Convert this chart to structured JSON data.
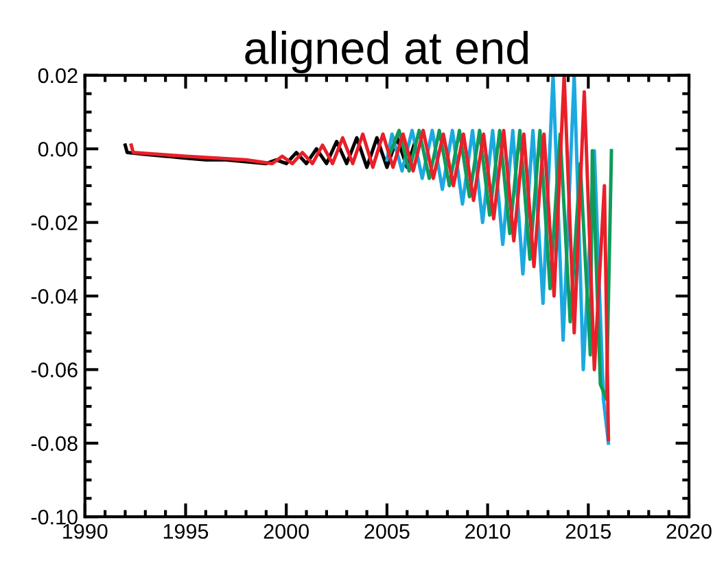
{
  "chart_data": {
    "type": "line",
    "title": "aligned at end",
    "xlim": [
      1990,
      2020
    ],
    "xticks": [
      1990,
      1995,
      2000,
      2005,
      2010,
      2015,
      2020
    ],
    "ylim": [
      -0.1,
      0.02
    ],
    "yticks": [
      {
        "value": 0.02,
        "label": "0.02"
      },
      {
        "value": 0.0,
        "label": "0.00"
      },
      {
        "value": -0.02,
        "label": "-0.02"
      },
      {
        "value": -0.04,
        "label": "-0.04"
      },
      {
        "value": -0.06,
        "label": "-0.06"
      },
      {
        "value": -0.08,
        "label": "-0.08"
      },
      {
        "value": -0.1,
        "label": "-0.10"
      }
    ],
    "marker": "none",
    "line_style": "solid",
    "series": [
      {
        "color": "#000000",
        "x": [
          1992.0,
          1992.1,
          1993,
          1994,
          1995,
          1996,
          1997,
          1998,
          1999,
          1999.5,
          2000,
          2000.5,
          2001,
          2001.5,
          2002,
          2002.5,
          2003,
          2003.5,
          2004,
          2004.5,
          2005,
          2005.5,
          2006,
          2006.4
        ],
        "values": [
          0.001,
          -0.001,
          -0.0015,
          -0.002,
          -0.0025,
          -0.003,
          -0.003,
          -0.0035,
          -0.004,
          -0.003,
          -0.004,
          -0.001,
          -0.004,
          0.0,
          -0.004,
          0.002,
          -0.004,
          0.003,
          -0.005,
          0.003,
          -0.005,
          0.003,
          -0.005,
          0.002
        ]
      },
      {
        "color": "#1ca9e1",
        "x": [
          2005.0,
          2005.25,
          2005.75,
          2006.25,
          2006.75,
          2007.25,
          2007.75,
          2008.25,
          2008.75,
          2009.25,
          2009.75,
          2010.25,
          2010.75,
          2011.25,
          2011.75,
          2012.25,
          2012.75,
          2013.25,
          2013.75,
          2014.3,
          2014.75,
          2015.3,
          2015.75,
          2016.0
        ],
        "values": [
          -0.003,
          0.004,
          -0.006,
          0.005,
          -0.008,
          0.005,
          -0.011,
          0.005,
          -0.015,
          0.005,
          -0.02,
          0.005,
          -0.026,
          0.005,
          -0.034,
          0.005,
          -0.042,
          0.02,
          -0.052,
          0.02,
          -0.06,
          -0.0005,
          -0.068,
          -0.08
        ]
      },
      {
        "color": "#0f9b5a",
        "x": [
          2005.1,
          2005.6,
          2006.1,
          2006.6,
          2007.1,
          2007.6,
          2008.1,
          2008.6,
          2009.1,
          2009.6,
          2010.1,
          2010.6,
          2011.1,
          2011.6,
          2012.1,
          2012.6,
          2013.1,
          2013.6,
          2014.1,
          2014.6,
          2015.1,
          2015.2,
          2015.6,
          2015.9,
          2016.15
        ],
        "values": [
          -0.002,
          0.005,
          -0.006,
          0.005,
          -0.008,
          0.005,
          -0.01,
          0.005,
          -0.013,
          0.005,
          -0.018,
          0.005,
          -0.023,
          0.005,
          -0.03,
          0.005,
          -0.038,
          0.004,
          -0.047,
          -0.004,
          -0.056,
          -0.0005,
          -0.064,
          -0.068,
          -0.0005
        ]
      },
      {
        "color": "#e8202a",
        "x": [
          1992.3,
          1992.4,
          1995,
          1998,
          1999.3,
          1999.8,
          2000.3,
          2000.8,
          2001.3,
          2001.8,
          2002.3,
          2002.8,
          2003.3,
          2003.8,
          2004.3,
          2004.8,
          2005.3,
          2005.8,
          2006.3,
          2006.8,
          2007.3,
          2007.8,
          2008.3,
          2008.8,
          2009.3,
          2009.8,
          2010.3,
          2010.8,
          2011.3,
          2011.8,
          2012.3,
          2012.8,
          2013.3,
          2013.8,
          2014.3,
          2014.8,
          2015.3,
          2015.8,
          2016.0
        ],
        "values": [
          0.001,
          -0.001,
          -0.002,
          -0.003,
          -0.004,
          -0.002,
          -0.004,
          -0.001,
          -0.004,
          0.001,
          -0.004,
          0.003,
          -0.004,
          0.004,
          -0.005,
          0.004,
          -0.005,
          0.004,
          -0.006,
          0.005,
          -0.008,
          0.004,
          -0.01,
          0.004,
          -0.014,
          0.004,
          -0.019,
          0.005,
          -0.025,
          0.004,
          -0.032,
          0.004,
          -0.04,
          0.02,
          -0.05,
          0.0155,
          -0.06,
          -0.01,
          -0.079
        ]
      }
    ]
  }
}
